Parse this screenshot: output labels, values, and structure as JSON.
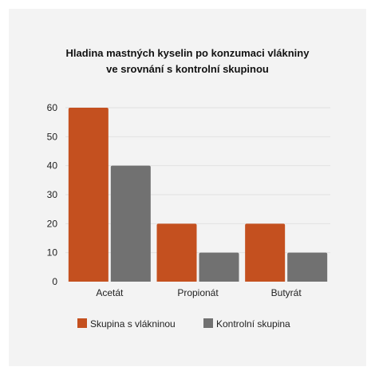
{
  "chart_data": {
    "type": "bar",
    "title": [
      "Hladina mastných kyselin po konzumaci vlákniny",
      "ve srovnání s kontrolní skupinou"
    ],
    "categories": [
      "Acetát",
      "Propionát",
      "Butyrát"
    ],
    "series": [
      {
        "name": "Skupina s vlákninou",
        "values": [
          60,
          20,
          20
        ],
        "color": "#c4501f"
      },
      {
        "name": "Kontrolní skupina",
        "values": [
          40,
          10,
          10
        ],
        "color": "#717171"
      }
    ],
    "ylim": [
      0,
      60
    ],
    "yticks": [
      0,
      10,
      20,
      30,
      40,
      50,
      60
    ],
    "xlabel": "",
    "ylabel": "",
    "grid": true,
    "legend_position": "bottom-center"
  },
  "colors": {
    "background": "#f3f3f3",
    "gridline": "#e2e2e2"
  }
}
